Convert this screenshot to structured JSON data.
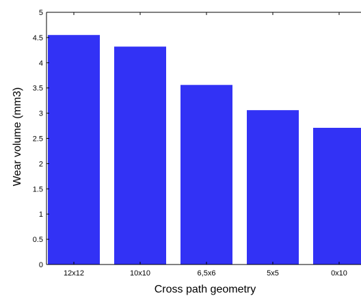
{
  "chart_data": {
    "type": "bar",
    "title": "",
    "xlabel": "Cross path geometry",
    "ylabel": "Wear volume (mm3)",
    "categories": [
      "12x12",
      "10x10",
      "6,5x6",
      "5x5",
      "0x10"
    ],
    "values": [
      4.55,
      4.32,
      3.56,
      3.06,
      2.71
    ],
    "ylim": [
      0,
      5
    ],
    "yticks": [
      "0",
      "0.5",
      "1",
      "1.5",
      "2",
      "2.5",
      "3",
      "3.5",
      "4",
      "4.5",
      "5"
    ],
    "grid": false,
    "bar_color": "#3232f5",
    "axis_color": "#000000"
  }
}
